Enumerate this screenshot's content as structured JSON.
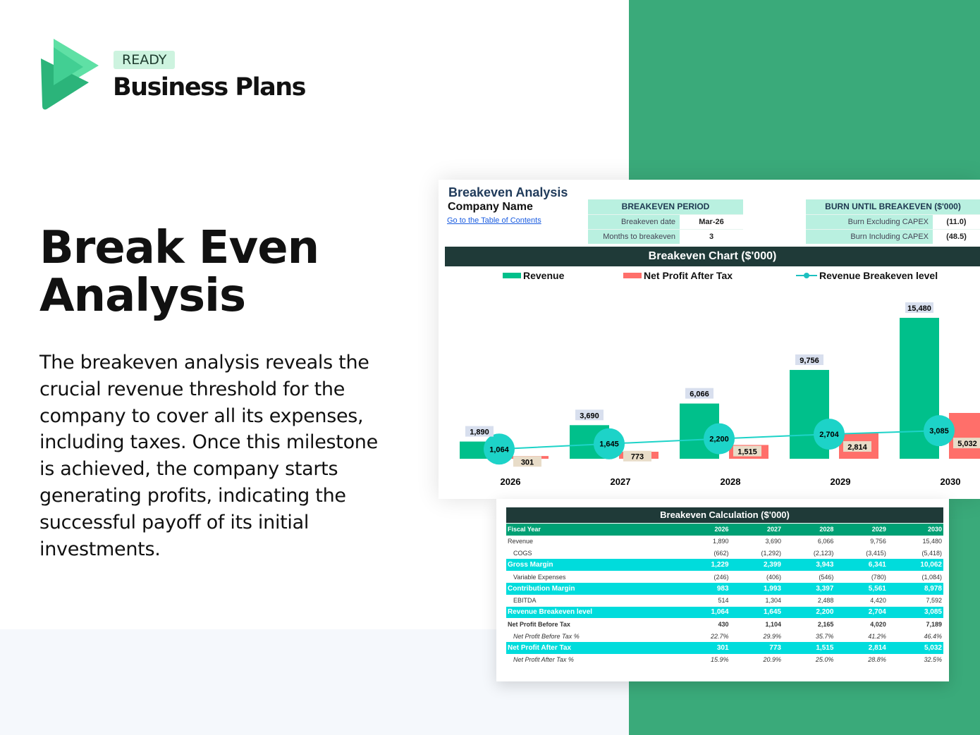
{
  "brand": {
    "badge": "READY",
    "name": "Business Plans"
  },
  "hero": {
    "title_line1": "Break Even",
    "title_line2": "Analysis",
    "description": "The breakeven analysis reveals the crucial revenue threshold for the company to cover all its expenses, including taxes. Once this milestone is achieved, the company starts generating profits, indicating the successful payoff of its initial investments."
  },
  "sheet": {
    "title": "Breakeven Analysis",
    "company": "Company Name",
    "toc_link": "Go to the Table of Contents",
    "period": {
      "header": "BREAKEVEN PERIOD",
      "rows": [
        {
          "label": "Breakeven date",
          "value": "Mar-26"
        },
        {
          "label": "Months to breakeven",
          "value": "3"
        }
      ]
    },
    "burn": {
      "header": "BURN UNTIL BREAKEVEN ($'000)",
      "rows": [
        {
          "label": "Burn Excluding CAPEX",
          "value": "(11.0)"
        },
        {
          "label": "Burn Including CAPEX",
          "value": "(48.5)"
        }
      ]
    }
  },
  "colors": {
    "revenue": "#00c08b",
    "profit": "#ff6f6a",
    "breakeven": "#1dd3c8",
    "header_dark": "#1f3a38",
    "green_panel": "#3aaa7a"
  },
  "chart_data": {
    "type": "bar",
    "title": "Breakeven Chart ($'000)",
    "categories": [
      "2026",
      "2027",
      "2028",
      "2029",
      "2030"
    ],
    "series": [
      {
        "name": "Revenue",
        "type": "bar",
        "values": [
          1890,
          3690,
          6066,
          9756,
          15480
        ]
      },
      {
        "name": "Net Profit After Tax",
        "type": "bar",
        "values": [
          301,
          773,
          1515,
          2814,
          5032
        ]
      },
      {
        "name": "Revenue Breakeven level",
        "type": "line",
        "values": [
          1064,
          1645,
          2200,
          2704,
          3085
        ]
      }
    ],
    "legend": "top",
    "grid": false
  },
  "table": {
    "title": "Breakeven Calculation ($'000)",
    "header": [
      "Fiscal Year",
      "2026",
      "2027",
      "2028",
      "2029",
      "2030"
    ],
    "rows": [
      {
        "style": "",
        "cells": [
          "Revenue",
          "1,890",
          "3,690",
          "6,066",
          "9,756",
          "15,480"
        ]
      },
      {
        "style": "ind",
        "cells": [
          "COGS",
          "(662)",
          "(1,292)",
          "(2,123)",
          "(3,415)",
          "(5,418)"
        ]
      },
      {
        "style": "hl",
        "cells": [
          "Gross Margin",
          "1,229",
          "2,399",
          "3,943",
          "6,341",
          "10,062"
        ]
      },
      {
        "style": "ind",
        "cells": [
          "Variable Expenses",
          "(246)",
          "(406)",
          "(546)",
          "(780)",
          "(1,084)"
        ]
      },
      {
        "style": "hl",
        "cells": [
          "Contribution Margin",
          "983",
          "1,993",
          "3,397",
          "5,561",
          "8,978"
        ]
      },
      {
        "style": "ind",
        "cells": [
          "EBITDA",
          "514",
          "1,304",
          "2,488",
          "4,420",
          "7,592"
        ]
      },
      {
        "style": "hl",
        "cells": [
          "Revenue Breakeven level",
          "1,064",
          "1,645",
          "2,200",
          "2,704",
          "3,085"
        ]
      },
      {
        "style": "b",
        "cells": [
          "Net Profit Before Tax",
          "430",
          "1,104",
          "2,165",
          "4,020",
          "7,189"
        ]
      },
      {
        "style": "it",
        "cells": [
          "Net Profit Before Tax %",
          "22.7%",
          "29.9%",
          "35.7%",
          "41.2%",
          "46.4%"
        ]
      },
      {
        "style": "hl",
        "cells": [
          "Net Profit After Tax",
          "301",
          "773",
          "1,515",
          "2,814",
          "5,032"
        ]
      },
      {
        "style": "it",
        "cells": [
          "Net Profit After Tax %",
          "15.9%",
          "20.9%",
          "25.0%",
          "28.8%",
          "32.5%"
        ]
      }
    ]
  }
}
